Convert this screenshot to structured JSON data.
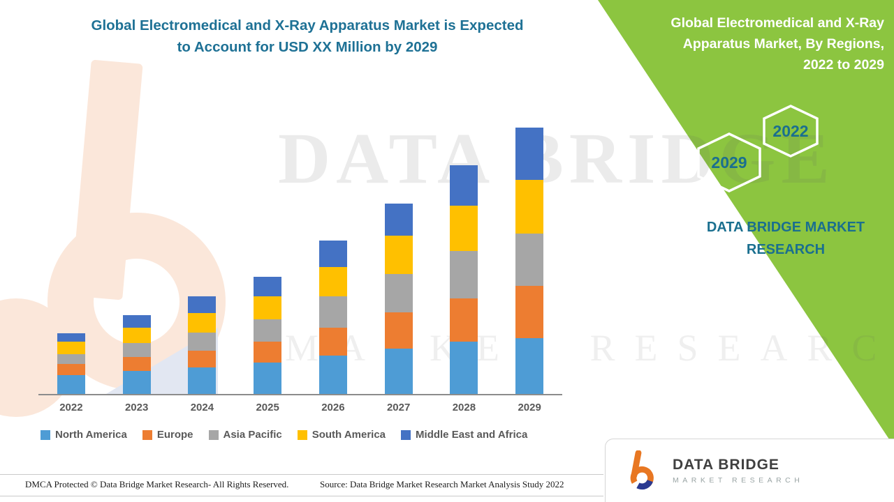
{
  "left": {
    "title_line1": "Global Electromedical and X-Ray Apparatus Market is Expected",
    "title_line2": "to Account for USD XX Million by 2029"
  },
  "right": {
    "title_line1": "Global Electromedical and X-Ray",
    "title_line2": "Apparatus Market, By Regions,",
    "title_line3": "2022 to 2029",
    "hexagon_2022_label": "2022",
    "hexagon_2029_label": "2029",
    "brand_line1": "DATA BRIDGE MARKET",
    "brand_line2": "RESEARCH"
  },
  "watermark": {
    "line1": "DATA BRIDGE",
    "line2": "MARKET RESEARCH"
  },
  "chart_data": {
    "type": "bar",
    "stacked": true,
    "title": "Global Electromedical and X-Ray Apparatus Market is Expected to Account for USD XX Million by 2029",
    "right_panel_title": "Global Electromedical and X-Ray Apparatus Market, By Regions, 2022 to 2029",
    "categories": [
      "2022",
      "2023",
      "2024",
      "2025",
      "2026",
      "2027",
      "2028",
      "2029"
    ],
    "series": [
      {
        "name": "North America",
        "color": "#4E9CD5",
        "values": [
          27,
          33,
          38,
          45,
          55,
          65,
          75,
          80
        ]
      },
      {
        "name": "Europe",
        "color": "#ED7D31",
        "values": [
          16,
          20,
          24,
          30,
          40,
          52,
          62,
          75
        ]
      },
      {
        "name": "Asia Pacific",
        "color": "#A6A6A6",
        "values": [
          14,
          20,
          26,
          32,
          45,
          55,
          68,
          75
        ]
      },
      {
        "name": "South America",
        "color": "#FFC000",
        "values": [
          18,
          22,
          28,
          33,
          42,
          55,
          65,
          77
        ]
      },
      {
        "name": "Middle East and Africa",
        "color": "#4472C4",
        "values": [
          12,
          18,
          24,
          28,
          38,
          46,
          58,
          75
        ]
      }
    ],
    "xlabel": "",
    "ylabel": "",
    "y_axis_tick_labels_visible": false,
    "grid": false,
    "legend_position": "bottom",
    "units_note": "Values not labeled on chart (USD XX Million); series values are relative heights"
  },
  "footer": {
    "dmca": "DMCA Protected © Data Bridge Market Research- All Rights Reserved.",
    "source": "Source: Data Bridge Market Research Market Analysis Study 2022"
  },
  "logo": {
    "name": "DATA BRIDGE",
    "tagline": "MARKET RESEARCH"
  },
  "colors": {
    "panel_green": "#8CC540",
    "title_teal": "#1E7195",
    "brand_teal": "#1A6F8F",
    "logo_orange": "#E87722",
    "logo_blue": "#2B3990"
  }
}
